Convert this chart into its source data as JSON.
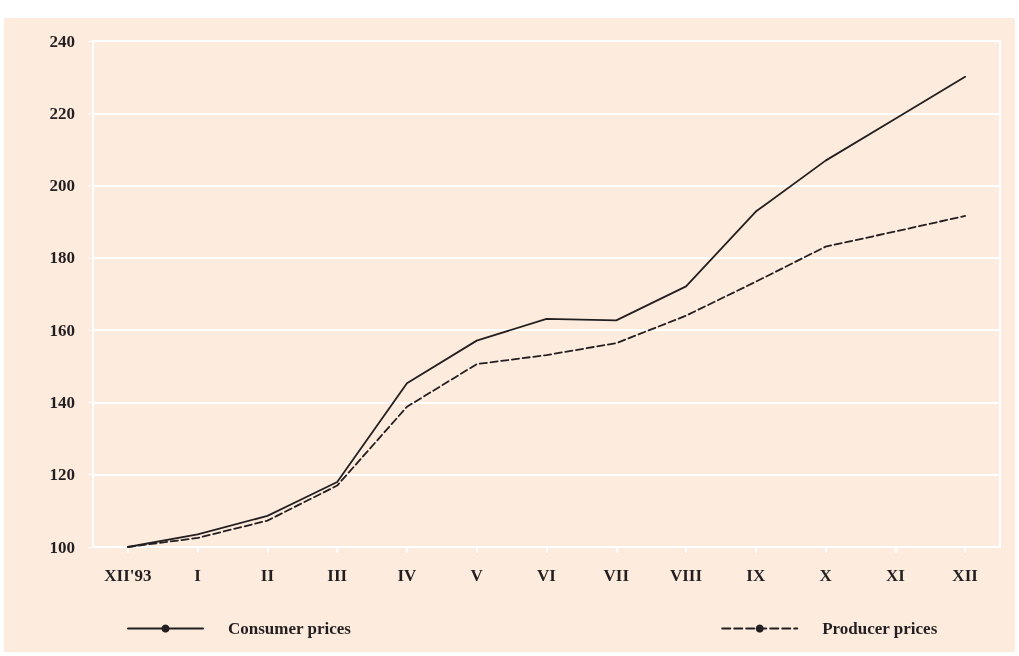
{
  "chart_data": {
    "type": "line",
    "categories": [
      "XII'93",
      "I",
      "II",
      "III",
      "IV",
      "V",
      "VI",
      "VII",
      "VIII",
      "IX",
      "X",
      "XI",
      "XII"
    ],
    "series": [
      {
        "name": "Consumer prices",
        "color": "#231f20",
        "line_style": "solid",
        "values": [
          100,
          103.5,
          108.6,
          118,
          145.3,
          157.1,
          163.1,
          162.7,
          172.1,
          192.8,
          206.9,
          218.5,
          230.1
        ]
      },
      {
        "name": "Producer prices",
        "color": "#231f20",
        "line_style": "dashed",
        "values": [
          100,
          102.5,
          107.3,
          117,
          138.8,
          150.6,
          153.1,
          156.4,
          164,
          173.4,
          183.1,
          187.3,
          191.6
        ]
      }
    ],
    "ylim": [
      100,
      240
    ],
    "yticks": [
      100,
      120,
      140,
      160,
      180,
      200,
      220,
      240
    ],
    "grid": "y",
    "legend": "bottom",
    "marker": "none"
  }
}
